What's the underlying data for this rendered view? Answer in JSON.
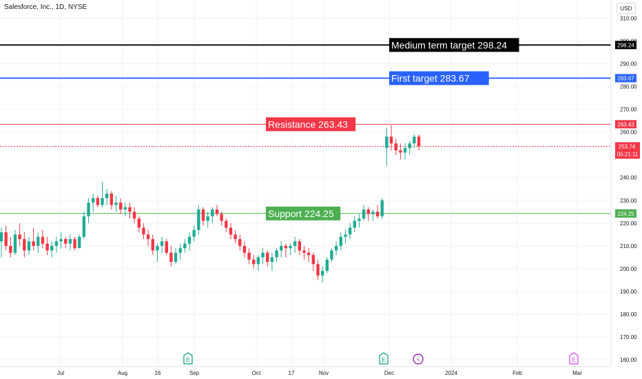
{
  "header": {
    "title": "Salesforce, Inc., 1D, NYSE",
    "currency": "USD"
  },
  "colors": {
    "up": "#22ab94",
    "down": "#f23645",
    "medium": "#000000",
    "first": "#2962ff",
    "resistance": "#f23645",
    "support": "#4caf50",
    "price": "#f23645"
  },
  "chart_data": {
    "type": "candlestick",
    "ylim": [
      157,
      318
    ],
    "y_ticks": [
      "310.00",
      "300.00",
      "290.00",
      "280.00",
      "270.00",
      "260.00",
      "240.00",
      "230.00",
      "220.00",
      "210.00",
      "200.00",
      "190.00",
      "180.00",
      "170.00",
      "160.00"
    ],
    "x_ticks": [
      "Jul",
      "Aug",
      "16",
      "Sep",
      "Oct",
      "17",
      "Nov",
      "Dec",
      "2024",
      "Feb",
      "Mar"
    ],
    "levels": [
      {
        "id": "medium",
        "label": "Medium term target 298.24",
        "value": 298.24,
        "axis_label": "298.24",
        "style": "solid"
      },
      {
        "id": "first",
        "label": "First target 283.67",
        "value": 283.67,
        "axis_label": "283.67",
        "style": "solid"
      },
      {
        "id": "resistance",
        "label": "Resistance 263.43",
        "value": 263.43,
        "axis_label": "263.43",
        "style": "solid"
      },
      {
        "id": "support",
        "label": "Support 224.25",
        "value": 224.25,
        "axis_label": "224.25",
        "style": "solid"
      }
    ],
    "last_price": {
      "value": 253.74,
      "label": "253.74",
      "countdown": "05:21:11"
    },
    "event_markers": [
      {
        "letter": "E",
        "type": "earnings"
      },
      {
        "letter": "E",
        "type": "earnings"
      },
      {
        "letter": "⚡",
        "type": "dividend"
      },
      {
        "letter": "E",
        "type": "earnings"
      }
    ],
    "candles": [
      [
        212,
        218,
        205,
        216
      ],
      [
        216,
        219,
        208,
        210
      ],
      [
        210,
        214,
        205,
        207
      ],
      [
        207,
        217,
        206,
        215
      ],
      [
        215,
        220,
        210,
        213
      ],
      [
        213,
        216,
        205,
        208
      ],
      [
        208,
        214,
        206,
        212
      ],
      [
        212,
        218,
        208,
        210
      ],
      [
        210,
        216,
        207,
        214
      ],
      [
        214,
        217,
        209,
        211
      ],
      [
        211,
        214,
        206,
        208
      ],
      [
        208,
        212,
        205,
        210
      ],
      [
        210,
        214,
        207,
        212
      ],
      [
        212,
        216,
        209,
        213
      ],
      [
        213,
        214,
        209,
        211
      ],
      [
        211,
        215,
        208,
        213
      ],
      [
        213,
        214,
        208,
        209
      ],
      [
        209,
        215,
        209,
        214
      ],
      [
        214,
        225,
        213,
        223
      ],
      [
        223,
        231,
        220,
        229
      ],
      [
        229,
        233,
        225,
        231
      ],
      [
        231,
        232,
        227,
        228
      ],
      [
        228,
        238,
        227,
        231
      ],
      [
        231,
        235,
        228,
        233
      ],
      [
        233,
        234,
        226,
        228
      ],
      [
        228,
        232,
        225,
        229
      ],
      [
        229,
        231,
        224,
        226
      ],
      [
        226,
        229,
        223,
        227
      ],
      [
        227,
        229,
        222,
        225
      ],
      [
        225,
        227,
        220,
        222
      ],
      [
        222,
        223,
        216,
        218
      ],
      [
        218,
        220,
        213,
        215
      ],
      [
        215,
        217,
        210,
        213
      ],
      [
        213,
        215,
        206,
        208
      ],
      [
        208,
        211,
        203,
        210
      ],
      [
        210,
        214,
        207,
        212
      ],
      [
        212,
        213,
        206,
        207
      ],
      [
        207,
        210,
        201,
        203
      ],
      [
        203,
        209,
        202,
        207
      ],
      [
        207,
        211,
        204,
        209
      ],
      [
        209,
        213,
        207,
        211
      ],
      [
        211,
        216,
        208,
        214
      ],
      [
        214,
        219,
        212,
        217
      ],
      [
        217,
        228,
        215,
        226
      ],
      [
        226,
        227,
        219,
        221
      ],
      [
        221,
        225,
        218,
        223
      ],
      [
        223,
        227,
        220,
        226
      ],
      [
        226,
        228,
        223,
        224
      ],
      [
        224,
        225,
        219,
        221
      ],
      [
        221,
        222,
        216,
        218
      ],
      [
        218,
        220,
        213,
        215
      ],
      [
        215,
        217,
        211,
        213
      ],
      [
        213,
        215,
        208,
        210
      ],
      [
        210,
        212,
        205,
        207
      ],
      [
        207,
        209,
        202,
        204
      ],
      [
        204,
        206,
        200,
        202
      ],
      [
        202,
        206,
        199,
        205
      ],
      [
        205,
        209,
        202,
        207
      ],
      [
        207,
        208,
        201,
        203
      ],
      [
        203,
        207,
        199,
        205
      ],
      [
        205,
        209,
        203,
        208
      ],
      [
        208,
        212,
        205,
        210
      ],
      [
        210,
        211,
        205,
        209
      ],
      [
        209,
        211,
        206,
        210
      ],
      [
        210,
        214,
        207,
        212
      ],
      [
        212,
        213,
        206,
        208
      ],
      [
        208,
        210,
        204,
        207
      ],
      [
        207,
        209,
        203,
        206
      ],
      [
        206,
        207,
        199,
        202
      ],
      [
        202,
        204,
        195,
        197
      ],
      [
        197,
        201,
        194,
        199
      ],
      [
        199,
        205,
        198,
        204
      ],
      [
        204,
        209,
        203,
        208
      ],
      [
        208,
        212,
        206,
        210
      ],
      [
        210,
        216,
        208,
        214
      ],
      [
        214,
        217,
        211,
        215
      ],
      [
        215,
        220,
        213,
        218
      ],
      [
        218,
        223,
        216,
        221
      ],
      [
        221,
        224,
        218,
        222
      ],
      [
        222,
        228,
        221,
        226
      ],
      [
        226,
        227,
        221,
        224
      ],
      [
        224,
        226,
        221,
        225
      ],
      [
        225,
        228,
        222,
        223
      ],
      [
        223,
        231,
        222,
        230
      ],
      [
        253,
        262,
        245,
        258
      ],
      [
        258,
        263,
        252,
        255
      ],
      [
        255,
        257,
        250,
        252
      ],
      [
        252,
        255,
        248,
        251
      ],
      [
        251,
        255,
        248,
        253
      ],
      [
        253,
        256,
        250,
        255
      ],
      [
        255,
        259,
        253,
        258
      ],
      [
        258,
        259,
        252,
        253.74
      ]
    ]
  }
}
